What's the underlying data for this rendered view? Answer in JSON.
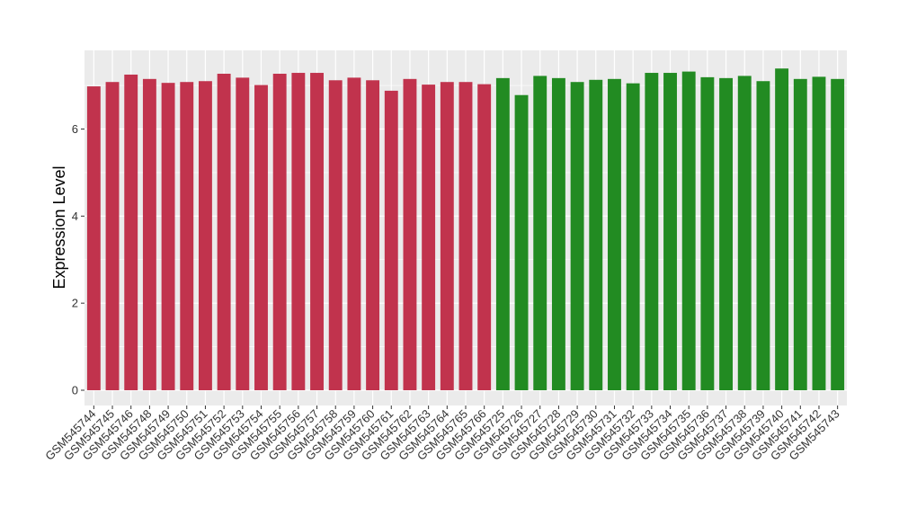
{
  "chart_data": {
    "type": "bar",
    "title": "",
    "xlabel": "",
    "ylabel": "Expression Level",
    "ylim": [
      0,
      7.7
    ],
    "yticks": [
      0,
      2,
      4,
      6
    ],
    "grid": true,
    "legend": "none",
    "colors": {
      "panel_bg": "#ebebeb",
      "grid": "#ffffff",
      "group_a": "#c1334d",
      "group_b": "#228b22"
    },
    "categories": [
      "GSM545744",
      "GSM545745",
      "GSM545746",
      "GSM545748",
      "GSM545749",
      "GSM545750",
      "GSM545751",
      "GSM545752",
      "GSM545753",
      "GSM545754",
      "GSM545755",
      "GSM545756",
      "GSM545757",
      "GSM545758",
      "GSM545759",
      "GSM545760",
      "GSM545761",
      "GSM545762",
      "GSM545763",
      "GSM545764",
      "GSM545765",
      "GSM545766",
      "GSM545725",
      "GSM545726",
      "GSM545727",
      "GSM545728",
      "GSM545729",
      "GSM545730",
      "GSM545731",
      "GSM545732",
      "GSM545733",
      "GSM545734",
      "GSM545735",
      "GSM545736",
      "GSM545737",
      "GSM545738",
      "GSM545739",
      "GSM545740",
      "GSM545741",
      "GSM545742",
      "GSM545743"
    ],
    "values": [
      6.98,
      7.08,
      7.25,
      7.15,
      7.06,
      7.08,
      7.1,
      7.27,
      7.18,
      7.01,
      7.27,
      7.29,
      7.29,
      7.12,
      7.18,
      7.12,
      6.88,
      7.15,
      7.02,
      7.08,
      7.08,
      7.03,
      7.17,
      6.78,
      7.22,
      7.17,
      7.08,
      7.13,
      7.15,
      7.05,
      7.29,
      7.29,
      7.32,
      7.19,
      7.17,
      7.22,
      7.1,
      7.39,
      7.15,
      7.2,
      7.15
    ],
    "groups": [
      "a",
      "a",
      "a",
      "a",
      "a",
      "a",
      "a",
      "a",
      "a",
      "a",
      "a",
      "a",
      "a",
      "a",
      "a",
      "a",
      "a",
      "a",
      "a",
      "a",
      "a",
      "a",
      "b",
      "b",
      "b",
      "b",
      "b",
      "b",
      "b",
      "b",
      "b",
      "b",
      "b",
      "b",
      "b",
      "b",
      "b",
      "b",
      "b",
      "b",
      "b"
    ]
  }
}
